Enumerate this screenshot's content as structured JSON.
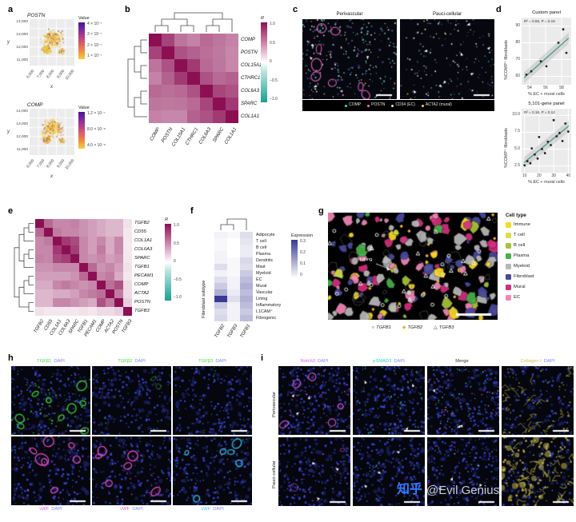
{
  "watermark": {
    "brand": "知乎",
    "handle": "@Evil Genius",
    "brand_color": "#2f7bff",
    "handle_color": "#c9ced6"
  },
  "panel_a": {
    "label": "a",
    "plots": [
      {
        "title": "POSTN",
        "xlabel": "x",
        "ylabel": "y",
        "yticks": [
          "14,000",
          "13,000",
          "12,000",
          "11,000"
        ],
        "xticks": [
          "6,000",
          "7,000",
          "8,000",
          "9,000",
          "10,000"
        ],
        "colorbar_title": "Value",
        "colorbar_ticks": [
          "4 × 10⁻⁷",
          "3 × 10⁻⁷",
          "2 × 10⁻⁷",
          "1 × 10⁻⁷"
        ]
      },
      {
        "title": "COMP",
        "xlabel": "x",
        "ylabel": "y",
        "yticks": [
          "14,000",
          "13,000",
          "12,000",
          "11,000"
        ],
        "xticks": [
          "6,000",
          "7,000",
          "8,000",
          "9,000",
          "10,000"
        ],
        "colorbar_title": "Value",
        "colorbar_ticks": [
          "1.2 × 10⁻⁷",
          "8.0 × 10⁻⁸",
          "4.0 × 10⁻⁸"
        ]
      }
    ]
  },
  "panel_b": {
    "label": "b",
    "genes": [
      "COMP",
      "POSTN",
      "COL15A1",
      "CTHRC1",
      "COL6A3",
      "SPARC",
      "COL1A1"
    ],
    "colorbar_title": "R",
    "colorbar_ticks": [
      "1.0",
      "0.5",
      "0",
      "−0.5",
      "−1.0"
    ],
    "matrix": [
      [
        1,
        0.78,
        0.58,
        0.52,
        0.62,
        0.57,
        0.52
      ],
      [
        0.78,
        1,
        0.72,
        0.66,
        0.6,
        0.56,
        0.5
      ],
      [
        0.58,
        0.72,
        1,
        0.82,
        0.62,
        0.57,
        0.5
      ],
      [
        0.52,
        0.66,
        0.82,
        1,
        0.72,
        0.62,
        0.66
      ],
      [
        0.62,
        0.6,
        0.62,
        0.72,
        1,
        0.77,
        0.72
      ],
      [
        0.57,
        0.56,
        0.57,
        0.62,
        0.77,
        1,
        0.82
      ],
      [
        0.52,
        0.5,
        0.5,
        0.66,
        0.72,
        0.82,
        1
      ]
    ]
  },
  "panel_c": {
    "label": "c",
    "titles": [
      "Perivascular",
      "Pauci-cellular"
    ],
    "legend": [
      {
        "label": "COMP",
        "color": "#3fe3c6"
      },
      {
        "label": "POSTN",
        "color": "#f36fc4"
      },
      {
        "label": "CD34 (EC)",
        "color": "#e8e8e8"
      },
      {
        "label": "ACTA2 (mural)",
        "color": "#ffd43d"
      }
    ]
  },
  "panel_d": {
    "label": "d",
    "ylabel": "%COMP⁺ fibroblasts",
    "xlabel": "% EC + mural cells",
    "plots": [
      {
        "title": "Custom panel",
        "stats": "R² = 0.66, P = 0.19",
        "yticks": [
          "90",
          "80",
          "70",
          "60"
        ],
        "xticks": [
          "54",
          "56",
          "58"
        ],
        "xrange": [
          53,
          59.2
        ],
        "yrange": [
          55,
          95
        ],
        "points": [
          [
            53.6,
            61
          ],
          [
            54.2,
            63
          ],
          [
            55.4,
            69
          ],
          [
            56.1,
            66
          ],
          [
            57.6,
            80
          ],
          [
            58.2,
            88
          ],
          [
            58.6,
            74
          ]
        ]
      },
      {
        "title": "5,101-gene panel",
        "stats": "R² = 0.16, P = 0.12",
        "yticks": [
          "10.0",
          "7.5",
          "5.0",
          "2.5"
        ],
        "xticks": [
          "10",
          "20",
          "30",
          "40"
        ],
        "xrange": [
          8,
          42
        ],
        "yrange": [
          1.5,
          11
        ],
        "points": [
          [
            10,
            2.6
          ],
          [
            12,
            3.2
          ],
          [
            14,
            2.9
          ],
          [
            15,
            5.1
          ],
          [
            17,
            4.2
          ],
          [
            19,
            3.6
          ],
          [
            20,
            6.8
          ],
          [
            22,
            5.0
          ],
          [
            24,
            4.4
          ],
          [
            26,
            6.1
          ],
          [
            28,
            5.6
          ],
          [
            30,
            9.3
          ],
          [
            32,
            6.9
          ],
          [
            34,
            7.4
          ],
          [
            36,
            6.2
          ],
          [
            38,
            8.8
          ],
          [
            40,
            7.6
          ]
        ]
      }
    ]
  },
  "panel_e": {
    "label": "e",
    "genes": [
      "TGFB2",
      "CD55",
      "COL1A1",
      "COL6A3",
      "SPARC",
      "TGFB1",
      "PECAM1",
      "COMP",
      "ACTA2",
      "POSTN",
      "TGFB3"
    ],
    "colorbar_title": "R",
    "colorbar_ticks": [
      "1.0",
      "0.5",
      "0",
      "−0.5",
      "−1.0"
    ],
    "matrix": [
      [
        1,
        0.62,
        0.5,
        0.5,
        0.52,
        0.45,
        0.4,
        0.35,
        0.3,
        0.3,
        0.12
      ],
      [
        0.62,
        1,
        0.55,
        0.5,
        0.5,
        0.45,
        0.4,
        0.35,
        0.3,
        0.3,
        0.1
      ],
      [
        0.5,
        0.55,
        1,
        0.82,
        0.75,
        0.5,
        0.4,
        0.5,
        0.35,
        0.5,
        0.1
      ],
      [
        0.5,
        0.5,
        0.82,
        1,
        0.8,
        0.5,
        0.4,
        0.55,
        0.35,
        0.5,
        0.1
      ],
      [
        0.52,
        0.5,
        0.75,
        0.8,
        1,
        0.5,
        0.45,
        0.5,
        0.4,
        0.45,
        0.1
      ],
      [
        0.45,
        0.45,
        0.5,
        0.5,
        0.5,
        1,
        0.62,
        0.45,
        0.5,
        0.4,
        0.12
      ],
      [
        0.4,
        0.4,
        0.4,
        0.4,
        0.45,
        0.62,
        1,
        0.5,
        0.55,
        0.35,
        0.1
      ],
      [
        0.35,
        0.35,
        0.5,
        0.55,
        0.5,
        0.45,
        0.5,
        1,
        0.6,
        0.72,
        0.15
      ],
      [
        0.3,
        0.3,
        0.35,
        0.35,
        0.4,
        0.5,
        0.55,
        0.6,
        1,
        0.55,
        0.15
      ],
      [
        0.3,
        0.3,
        0.5,
        0.5,
        0.45,
        0.4,
        0.35,
        0.72,
        0.55,
        1,
        0.2
      ],
      [
        0.12,
        0.1,
        0.1,
        0.1,
        0.1,
        0.12,
        0.1,
        0.15,
        0.15,
        0.2,
        1
      ]
    ]
  },
  "panel_f": {
    "label": "f",
    "axis_label": "Fibroblast subtype",
    "columns": [
      "TGFB2",
      "TGFB3",
      "TGFB1"
    ],
    "rows": [
      "Adipocyte",
      "T cell",
      "B cell",
      "Plasma",
      "Dendritic",
      "Mast",
      "Myeloid",
      "EC",
      "Mural",
      "Vascular",
      "Lining",
      "Inflammatory",
      "L1CAM⁺",
      "Fibrogenic"
    ],
    "colorbar_title": "Expression",
    "colorbar_ticks": [
      "0.3",
      "0.2",
      "0.1",
      "0"
    ],
    "matrix": [
      [
        0.02,
        0.01,
        0.05
      ],
      [
        0.01,
        0,
        0.04
      ],
      [
        0.01,
        0,
        0.03
      ],
      [
        0.02,
        0,
        0.03
      ],
      [
        0.02,
        0.01,
        0.06
      ],
      [
        0.05,
        0.01,
        0.05
      ],
      [
        0.02,
        0.01,
        0.08
      ],
      [
        0.05,
        0.02,
        0.1
      ],
      [
        0.08,
        0.02,
        0.12
      ],
      [
        0.12,
        0.03,
        0.1
      ],
      [
        0.3,
        0.05,
        0.12
      ],
      [
        0.08,
        0.02,
        0.1
      ],
      [
        0.05,
        0.02,
        0.08
      ],
      [
        0.06,
        0.02,
        0.1
      ]
    ]
  },
  "panel_g": {
    "label": "g",
    "legend_title": "Cell type",
    "annotation": "Lining",
    "legend": [
      {
        "label": "Immune",
        "color": "#f6d829"
      },
      {
        "label": "T cell",
        "color": "#d7df4e"
      },
      {
        "label": "B cell",
        "color": "#a8c437"
      },
      {
        "label": "Plasma",
        "color": "#46b04a"
      },
      {
        "label": "Myeloid",
        "color": "#b8b8b8"
      },
      {
        "label": "Fibroblast",
        "color": "#4a4a9d"
      },
      {
        "label": "Mural",
        "color": "#d22f7e"
      },
      {
        "label": "EC",
        "color": "#ef87b5"
      }
    ],
    "markers": [
      {
        "label": "TGFB1",
        "symbol": "circle",
        "color": "#ffffff"
      },
      {
        "label": "TGFB2",
        "symbol": "diamond",
        "color": "#f0b429"
      },
      {
        "label": "TGFB3",
        "symbol": "triangle",
        "color": "#ffffff"
      }
    ]
  },
  "panel_h": {
    "label": "h",
    "top_labels": [
      {
        "stain": "TGFβ1",
        "counter": "DAPI",
        "stain_color": "#46d846",
        "counter_color": "#7d88ff"
      },
      {
        "stain": "TGFβ2",
        "counter": "DAPI",
        "stain_color": "#46d846",
        "counter_color": "#7d88ff"
      },
      {
        "stain": "TGFβ3",
        "counter": "DAPI",
        "stain_color": "#46d846",
        "counter_color": "#7d88ff"
      }
    ],
    "bottom_labels": [
      {
        "stain": "vWF",
        "counter": "DAPI",
        "stain_color": "#f050d8",
        "counter_color": "#7d88ff"
      },
      {
        "stain": "vWF",
        "counter": "DAPI",
        "stain_color": "#f050d8",
        "counter_color": "#7d88ff"
      },
      {
        "stain": "vWF",
        "counter": "DAPI",
        "stain_color": "#3ec6f0",
        "counter_color": "#7d88ff"
      }
    ]
  },
  "panel_i": {
    "label": "i",
    "row_labels": [
      "Perivascular",
      "Pauci-cellular"
    ],
    "col_labels": [
      {
        "stain": "Notch3",
        "counter": "DAPI",
        "stain_color": "#e25ae2",
        "counter_color": "#7d88ff"
      },
      {
        "stain": "pSMAD3",
        "counter": "DAPI",
        "stain_color": "#35d0c5",
        "counter_color": "#7d88ff"
      },
      {
        "stain": "Merge",
        "counter": "",
        "stain_color": "#333333",
        "counter_color": "#7d88ff"
      },
      {
        "stain": "Collagen I",
        "counter": "DAPI",
        "stain_color": "#cfc04a",
        "counter_color": "#7d88ff"
      }
    ]
  }
}
